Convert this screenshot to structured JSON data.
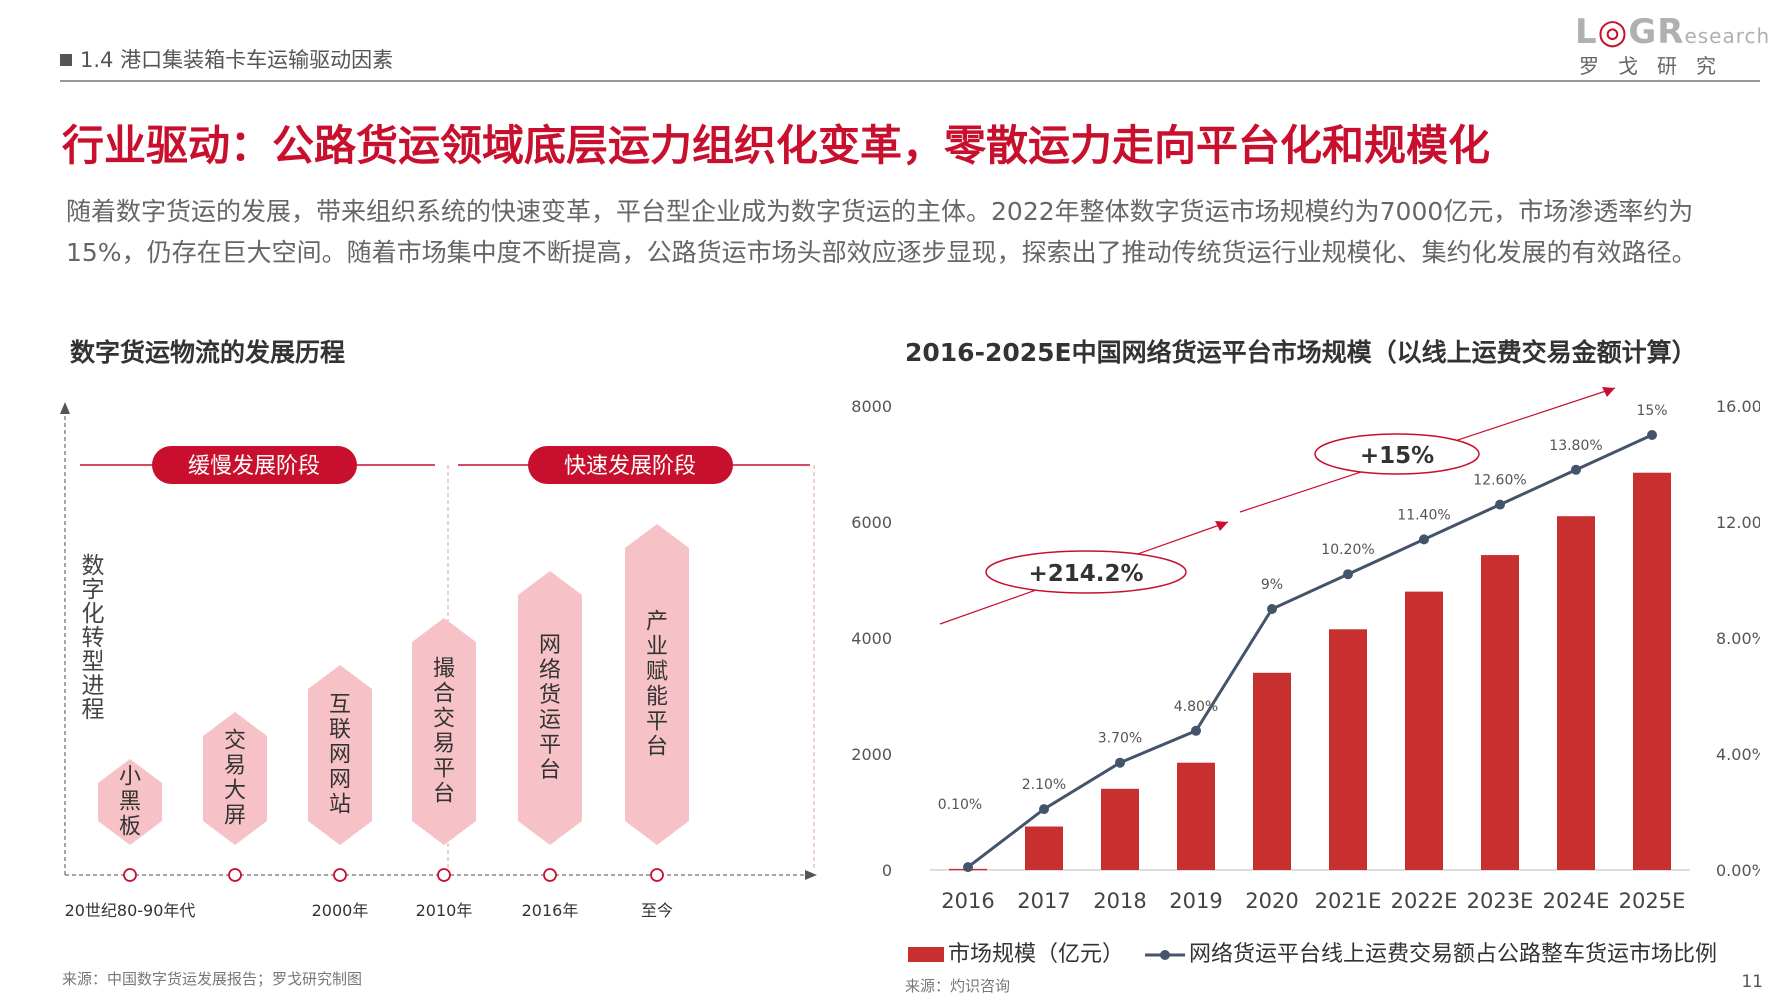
{
  "header": {
    "section": "1.4 港口集装箱卡车运输驱动因素",
    "logo_main_a": "L",
    "logo_main_b": "G",
    "logo_main_c": "R",
    "logo_main_d": "esearch",
    "logo_sub": "罗戈研究"
  },
  "title": "行业驱动：公路货运领域底层运力组织化变革，零散运力走向平台化和规模化",
  "intro": "随着数字货运的发展，带来组织系统的快速变革，平台型企业成为数字货运的主体。2022年整体数字货运市场规模约为7000亿元，市场渗透率约为15%，仍存在巨大空间。随着市场集中度不断提高，公路货运市场头部效应逐步显现，探索出了推动传统货运行业规模化、集约化发展的有效路径。",
  "left_panel": {
    "title": "数字货运物流的发展历程",
    "y_label": "数字化转型进程",
    "stage_slow": "缓慢发展阶段",
    "stage_fast": "快速发展阶段",
    "milestones": [
      {
        "label": "小黑板",
        "time": "20世纪80-90年代",
        "level": 1
      },
      {
        "label": "交易大屏",
        "time": "",
        "level": 2
      },
      {
        "label": "互联网网站",
        "time": "2000年",
        "level": 3
      },
      {
        "label": "撮合交易平台",
        "time": "2010年",
        "level": 4
      },
      {
        "label": "网络货运平台",
        "time": "2016年",
        "level": 5
      },
      {
        "label": "产业赋能平台",
        "time": "至今",
        "level": 6
      }
    ],
    "source": "来源：中国数字货运发展报告；罗戈研究制图"
  },
  "chart_data": {
    "type": "bar",
    "title": "2016-2025E中国网络货运平台市场规模（以线上运费交易金额计算）",
    "categories": [
      "2016",
      "2017",
      "2018",
      "2019",
      "2020",
      "2021E",
      "2022E",
      "2023E",
      "2024E",
      "2025E"
    ],
    "series": [
      {
        "name": "市场规模（亿元）",
        "type": "bar",
        "axis": "left",
        "color": "#c8302f",
        "values": [
          20,
          750,
          1400,
          1850,
          3400,
          4150,
          4800,
          5430,
          6100,
          6850
        ]
      },
      {
        "name": "网络货运平台线上运费交易额占公路整车货运市场比例",
        "type": "line",
        "axis": "right",
        "color": "#44546a",
        "values": [
          0.1,
          2.1,
          3.7,
          4.8,
          9,
          10.2,
          11.4,
          12.6,
          13.8,
          15
        ],
        "labels": [
          "0.10%",
          "2.10%",
          "3.70%",
          "4.80%",
          "9%",
          "10.20%",
          "11.40%",
          "12.60%",
          "13.80%",
          "15%"
        ]
      }
    ],
    "y_left": {
      "min": 0,
      "max": 8000,
      "ticks": [
        "0",
        "2000",
        "4000",
        "6000",
        "8000"
      ]
    },
    "y_right": {
      "min": 0,
      "max": 16,
      "ticks": [
        "0.00%",
        "4.00%",
        "8.00%",
        "12.00%",
        "16.00%"
      ]
    },
    "annotations": [
      "+214.2%",
      "+15%"
    ],
    "grid": false,
    "legend": "bottom",
    "source": "来源：灼识咨询"
  },
  "page_number": "11"
}
